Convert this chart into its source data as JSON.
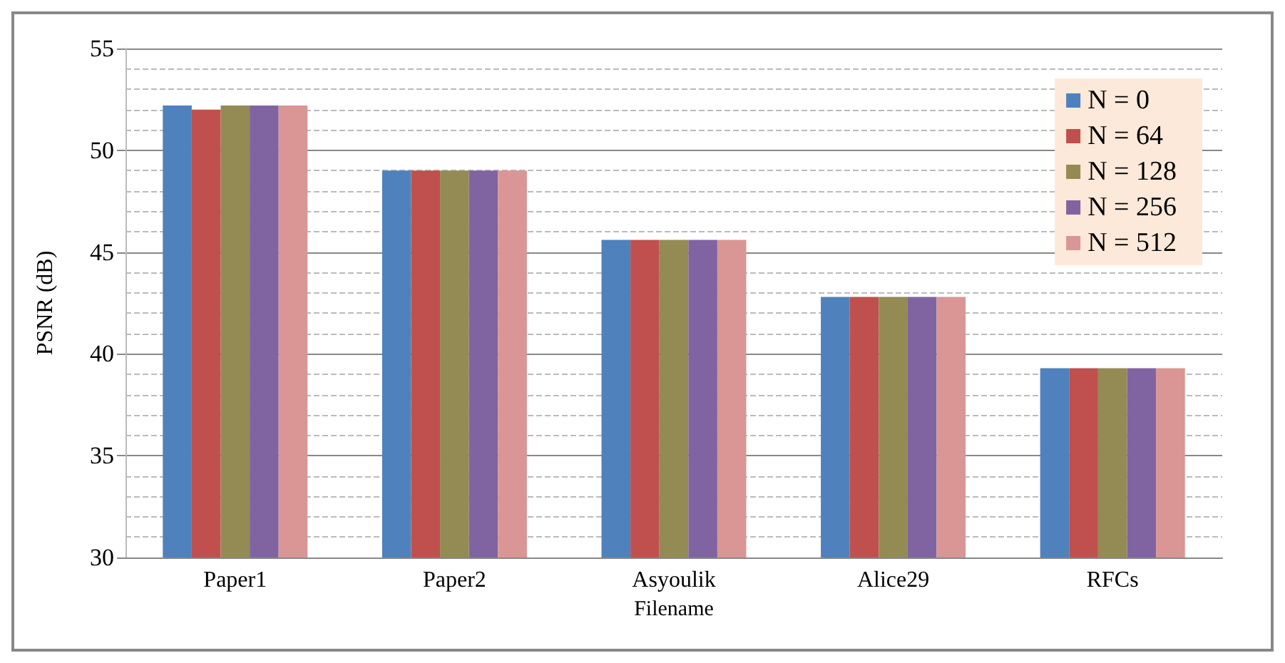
{
  "chart_data": {
    "type": "bar",
    "xlabel": "Filename",
    "ylabel": "PSNR (dB)",
    "categories": [
      "Paper1",
      "Paper2",
      "Asyoulik",
      "Alice29",
      "RFCs"
    ],
    "series": [
      {
        "name": "N = 0",
        "color": "#4f81bd",
        "values": [
          52.2,
          49.0,
          45.6,
          42.8,
          39.3
        ]
      },
      {
        "name": "N = 64",
        "color": "#c0504d",
        "values": [
          52.0,
          49.0,
          45.6,
          42.8,
          39.3
        ]
      },
      {
        "name": "N = 128",
        "color": "#948a54",
        "values": [
          52.2,
          49.0,
          45.6,
          42.8,
          39.3
        ]
      },
      {
        "name": "N = 256",
        "color": "#8064a2",
        "values": [
          52.2,
          49.0,
          45.6,
          42.8,
          39.3
        ]
      },
      {
        "name": "N = 512",
        "color": "#d99694",
        "values": [
          52.2,
          49.0,
          45.6,
          42.8,
          39.3
        ]
      }
    ],
    "ylim": [
      30,
      55
    ],
    "yticks": [
      30,
      35,
      40,
      45,
      50,
      55
    ],
    "grid": "y",
    "legend": "top right"
  }
}
